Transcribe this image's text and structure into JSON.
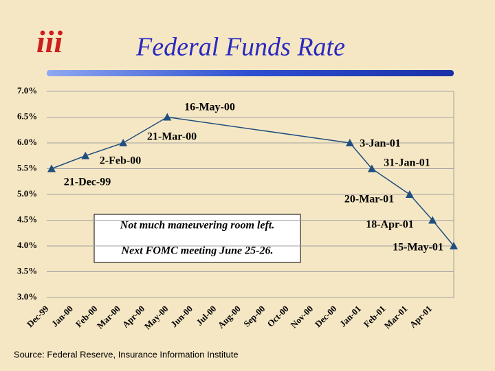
{
  "logo": "iii",
  "chart_data": {
    "type": "line",
    "title": "Federal Funds Rate",
    "categories": [
      "Dec-99",
      "Jan-00",
      "Feb-00",
      "Mar-00",
      "Apr-00",
      "May-00",
      "Jun-00",
      "Jul-00",
      "Aug-00",
      "Sep-00",
      "Oct-00",
      "Nov-00",
      "Dec-00",
      "Jan-01",
      "Feb-01",
      "Mar-01",
      "Apr-01"
    ],
    "series": [
      {
        "name": "Federal Funds Rate",
        "color": "#1f4f7f",
        "x": [
          "21-Dec-99",
          "2-Feb-00",
          "21-Mar-00",
          "16-May-00",
          "3-Jan-01",
          "31-Jan-01",
          "20-Mar-01",
          "18-Apr-01",
          "15-May-01"
        ],
        "values": [
          5.5,
          5.75,
          6.0,
          6.5,
          6.0,
          5.5,
          5.0,
          4.5,
          4.0
        ]
      }
    ],
    "ylim": [
      3.0,
      7.0
    ],
    "yticks": [
      {
        "value": 7.0,
        "label": "7.0%"
      },
      {
        "value": 6.5,
        "label": "6.5%"
      },
      {
        "value": 6.0,
        "label": "6.0%"
      },
      {
        "value": 5.5,
        "label": "5.5%"
      },
      {
        "value": 5.0,
        "label": "5.0%"
      },
      {
        "value": 4.5,
        "label": "4.5%"
      },
      {
        "value": 4.0,
        "label": "4.0%"
      },
      {
        "value": 3.5,
        "label": "3.5%"
      },
      {
        "value": 3.0,
        "label": "3.0%"
      }
    ],
    "grid": true,
    "annotations": [
      "Not much maneuvering room left.",
      "Next FOMC meeting June 25-26."
    ],
    "source": "Source: Federal Reserve, Insurance Information Institute"
  }
}
